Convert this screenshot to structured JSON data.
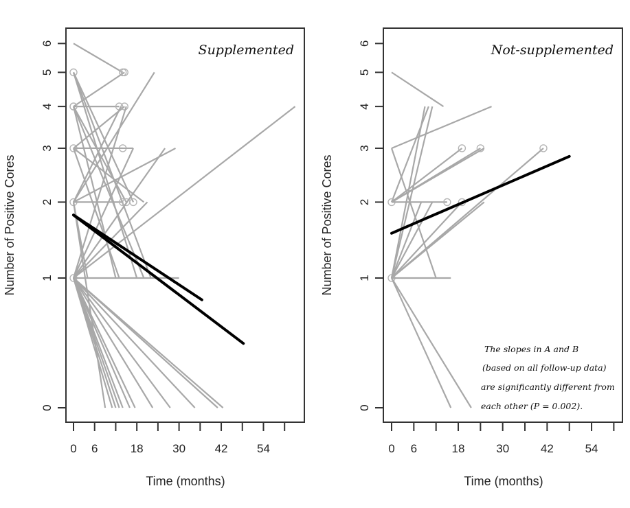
{
  "chart_data": [
    {
      "type": "line",
      "title": "Supplemented",
      "xlabel": "Time (months)",
      "ylabel": "Number of Positive Cores",
      "x_ticks": [
        0,
        6,
        12,
        18,
        24,
        30,
        36,
        42,
        48,
        54,
        60
      ],
      "x_tick_labels": [
        "0",
        "6",
        "",
        "18",
        "",
        "30",
        "",
        "42",
        "",
        "54",
        ""
      ],
      "y_ticks": [
        0,
        1,
        2,
        3,
        4,
        5,
        6
      ],
      "y_tick_labels": [
        "0",
        "1",
        "2",
        "3",
        "4",
        "5",
        "6"
      ],
      "y_scale": "log(n+1)",
      "xlim": [
        -2,
        66
      ],
      "grid": false,
      "colors": {
        "individual": "#a8a8a8",
        "fit": "#000000"
      },
      "individual_series": [
        {
          "points": [
            [
              0,
              6
            ],
            [
              14,
              5
            ]
          ],
          "markers": [
            false,
            true
          ]
        },
        {
          "points": [
            [
              0,
              4
            ],
            [
              14.5,
              5
            ]
          ],
          "markers": [
            true,
            true
          ]
        },
        {
          "points": [
            [
              0,
              5
            ],
            [
              0,
              5
            ]
          ],
          "markers": [
            true,
            false
          ]
        },
        {
          "points": [
            [
              0,
              5
            ],
            [
              22,
              1
            ]
          ],
          "markers": [
            false,
            false
          ]
        },
        {
          "points": [
            [
              0,
              5
            ],
            [
              17,
              2
            ]
          ],
          "markers": [
            false,
            true
          ]
        },
        {
          "points": [
            [
              0,
              5
            ],
            [
              18,
              1
            ]
          ],
          "markers": [
            false,
            false
          ]
        },
        {
          "points": [
            [
              0,
              4
            ],
            [
              13,
              4
            ]
          ],
          "markers": [
            true,
            true
          ]
        },
        {
          "points": [
            [
              0,
              4
            ],
            [
              12,
              1
            ]
          ],
          "markers": [
            false,
            false
          ]
        },
        {
          "points": [
            [
              0,
              4
            ],
            [
              20,
              1
            ]
          ],
          "markers": [
            false,
            false
          ]
        },
        {
          "points": [
            [
              0,
              4
            ],
            [
              15,
              2
            ]
          ],
          "markers": [
            false,
            true
          ]
        },
        {
          "points": [
            [
              0,
              3
            ],
            [
              14,
              3
            ]
          ],
          "markers": [
            true,
            true
          ]
        },
        {
          "points": [
            [
              0,
              3
            ],
            [
              17,
              3
            ]
          ],
          "markers": [
            false,
            false
          ]
        },
        {
          "points": [
            [
              0,
              3
            ],
            [
              14.5,
              4
            ]
          ],
          "markers": [
            false,
            true
          ]
        },
        {
          "points": [
            [
              0,
              3
            ],
            [
              20,
              2
            ]
          ],
          "markers": [
            false,
            false
          ]
        },
        {
          "points": [
            [
              0,
              3
            ],
            [
              13,
              1
            ]
          ],
          "markers": [
            false,
            false
          ]
        },
        {
          "points": [
            [
              0,
              2
            ],
            [
              13.5,
              4
            ]
          ],
          "markers": [
            true,
            false
          ]
        },
        {
          "points": [
            [
              0,
              2
            ],
            [
              23,
              5
            ]
          ],
          "markers": [
            false,
            false
          ]
        },
        {
          "points": [
            [
              0,
              2
            ],
            [
              29,
              3
            ]
          ],
          "markers": [
            false,
            false
          ]
        },
        {
          "points": [
            [
              0,
              2
            ],
            [
              14,
              2
            ]
          ],
          "markers": [
            false,
            true
          ]
        },
        {
          "points": [
            [
              0,
              2
            ],
            [
              4,
              1
            ]
          ],
          "markers": [
            false,
            false
          ]
        },
        {
          "points": [
            [
              0,
              2
            ],
            [
              9,
              0
            ]
          ],
          "markers": [
            false,
            false
          ]
        },
        {
          "points": [
            [
              0,
              1
            ],
            [
              15,
              4
            ]
          ],
          "markers": [
            true,
            false
          ]
        },
        {
          "points": [
            [
              0,
              1
            ],
            [
              26,
              3
            ]
          ],
          "markers": [
            false,
            false
          ]
        },
        {
          "points": [
            [
              0,
              1
            ],
            [
              17,
              3
            ]
          ],
          "markers": [
            false,
            false
          ]
        },
        {
          "points": [
            [
              0,
              1
            ],
            [
              21,
              2
            ]
          ],
          "markers": [
            false,
            false
          ]
        },
        {
          "points": [
            [
              0,
              1
            ],
            [
              63,
              4
            ]
          ],
          "markers": [
            false,
            false
          ]
        },
        {
          "points": [
            [
              0,
              1
            ],
            [
              30,
              1
            ]
          ],
          "markers": [
            false,
            false
          ]
        },
        {
          "points": [
            [
              0,
              1
            ],
            [
              11,
              0
            ]
          ],
          "markers": [
            false,
            false
          ]
        },
        {
          "points": [
            [
              0,
              1
            ],
            [
              12,
              0
            ]
          ],
          "markers": [
            false,
            false
          ]
        },
        {
          "points": [
            [
              0,
              1
            ],
            [
              13,
              0
            ]
          ],
          "markers": [
            false,
            false
          ]
        },
        {
          "points": [
            [
              0,
              1
            ],
            [
              14,
              0
            ]
          ],
          "markers": [
            false,
            false
          ]
        },
        {
          "points": [
            [
              0,
              1
            ],
            [
              16,
              0
            ]
          ],
          "markers": [
            false,
            false
          ]
        },
        {
          "points": [
            [
              0,
              1
            ],
            [
              17.5,
              0
            ]
          ],
          "markers": [
            false,
            false
          ]
        },
        {
          "points": [
            [
              0,
              1
            ],
            [
              22.5,
              0
            ]
          ],
          "markers": [
            false,
            false
          ]
        },
        {
          "points": [
            [
              0,
              1
            ],
            [
              27.5,
              0
            ]
          ],
          "markers": [
            false,
            false
          ]
        },
        {
          "points": [
            [
              0,
              1
            ],
            [
              34.5,
              0
            ]
          ],
          "markers": [
            false,
            false
          ]
        },
        {
          "points": [
            [
              0,
              1
            ],
            [
              41,
              0
            ]
          ],
          "markers": [
            false,
            false
          ]
        },
        {
          "points": [
            [
              0,
              1
            ],
            [
              42.5,
              0
            ]
          ],
          "markers": [
            false,
            false
          ]
        }
      ],
      "fit_lines": [
        {
          "points": [
            [
              0,
              1.8
            ],
            [
              36.5,
              0.78
            ]
          ]
        },
        {
          "points": [
            [
              0,
              1.8
            ],
            [
              48.3,
              0.41
            ]
          ]
        }
      ]
    },
    {
      "type": "line",
      "title": "Not-supplemented",
      "xlabel": "Time (months)",
      "ylabel": "Number of Positive Cores",
      "x_ticks": [
        0,
        6,
        12,
        18,
        24,
        30,
        36,
        42,
        48,
        54,
        60
      ],
      "x_tick_labels": [
        "0",
        "6",
        "",
        "18",
        "",
        "30",
        "",
        "42",
        "",
        "54",
        ""
      ],
      "y_ticks": [
        0,
        1,
        2,
        3,
        4,
        5,
        6
      ],
      "y_tick_labels": [
        "0",
        "1",
        "2",
        "3",
        "4",
        "5",
        "6"
      ],
      "y_scale": "log(n+1)",
      "xlim": [
        -2,
        62
      ],
      "grid": false,
      "colors": {
        "individual": "#a8a8a8",
        "fit": "#000000"
      },
      "individual_series": [
        {
          "points": [
            [
              0,
              5
            ],
            [
              14,
              4
            ]
          ],
          "markers": [
            false,
            false
          ]
        },
        {
          "points": [
            [
              0,
              3
            ],
            [
              27,
              4
            ]
          ],
          "markers": [
            false,
            false
          ]
        },
        {
          "points": [
            [
              0,
              3
            ],
            [
              12,
              1
            ]
          ],
          "markers": [
            false,
            false
          ]
        },
        {
          "points": [
            [
              0,
              2
            ],
            [
              10,
              4
            ]
          ],
          "markers": [
            true,
            false
          ]
        },
        {
          "points": [
            [
              0,
              2
            ],
            [
              19,
              3
            ]
          ],
          "markers": [
            false,
            true
          ]
        },
        {
          "points": [
            [
              0,
              2
            ],
            [
              24,
              3
            ]
          ],
          "markers": [
            false,
            true
          ]
        },
        {
          "points": [
            [
              0,
              2
            ],
            [
              25,
              3
            ]
          ],
          "markers": [
            false,
            false
          ]
        },
        {
          "points": [
            [
              0,
              2
            ],
            [
              15,
              2
            ]
          ],
          "markers": [
            false,
            true
          ]
        },
        {
          "points": [
            [
              0,
              1
            ],
            [
              9,
              4
            ]
          ],
          "markers": [
            true,
            false
          ]
        },
        {
          "points": [
            [
              0,
              1
            ],
            [
              11,
              4
            ]
          ],
          "markers": [
            false,
            false
          ]
        },
        {
          "points": [
            [
              0,
              1
            ],
            [
              8,
              2
            ]
          ],
          "markers": [
            false,
            false
          ]
        },
        {
          "points": [
            [
              0,
              1
            ],
            [
              11,
              2
            ]
          ],
          "markers": [
            false,
            false
          ]
        },
        {
          "points": [
            [
              0,
              1
            ],
            [
              19,
              2
            ]
          ],
          "markers": [
            false,
            true
          ]
        },
        {
          "points": [
            [
              0,
              1
            ],
            [
              25,
              2
            ]
          ],
          "markers": [
            false,
            false
          ]
        },
        {
          "points": [
            [
              0,
              1
            ],
            [
              41,
              3
            ]
          ],
          "markers": [
            false,
            true
          ]
        },
        {
          "points": [
            [
              0,
              1
            ],
            [
              16,
              1
            ]
          ],
          "markers": [
            false,
            false
          ]
        },
        {
          "points": [
            [
              0,
              1
            ],
            [
              16,
              0
            ]
          ],
          "markers": [
            false,
            false
          ]
        },
        {
          "points": [
            [
              0,
              1
            ],
            [
              21.5,
              0
            ]
          ],
          "markers": [
            false,
            false
          ]
        }
      ],
      "fit_lines": [
        {
          "points": [
            [
              0,
              1.54
            ],
            [
              48,
              2.83
            ]
          ]
        }
      ],
      "annotation": [
        "The slopes in A and B",
        "(based on all follow-up data)",
        "are significantly different from",
        "each other (P = 0.002)."
      ]
    }
  ]
}
